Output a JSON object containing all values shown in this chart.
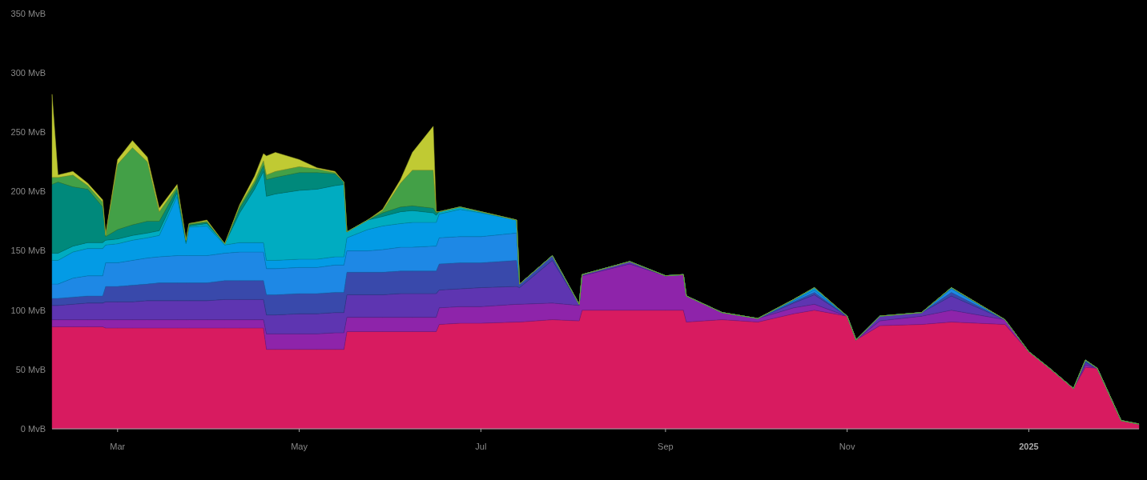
{
  "chart_data": {
    "type": "area",
    "stacked": true,
    "x": [
      "2024-02-08",
      "2024-02-10",
      "2024-02-15",
      "2024-02-20",
      "2024-02-25",
      "2024-02-26",
      "2024-03-01",
      "2024-03-06",
      "2024-03-11",
      "2024-03-15",
      "2024-03-21",
      "2024-03-24",
      "2024-03-25",
      "2024-03-31",
      "2024-04-06",
      "2024-04-11",
      "2024-04-16",
      "2024-04-19",
      "2024-04-20",
      "2024-04-23",
      "2024-05-01",
      "2024-05-07",
      "2024-05-13",
      "2024-05-16",
      "2024-05-17",
      "2024-05-24",
      "2024-05-29",
      "2024-06-04",
      "2024-06-08",
      "2024-06-15",
      "2024-06-16",
      "2024-06-17",
      "2024-06-24",
      "2024-07-01",
      "2024-07-13",
      "2024-07-14",
      "2024-07-25",
      "2024-08-03",
      "2024-08-04",
      "2024-08-20",
      "2024-09-01",
      "2024-09-07",
      "2024-09-08",
      "2024-09-20",
      "2024-10-02",
      "2024-10-14",
      "2024-10-21",
      "2024-11-01",
      "2024-11-04",
      "2024-11-12",
      "2024-11-26",
      "2024-12-06",
      "2024-12-24",
      "2025-01-01",
      "2025-01-08",
      "2025-01-16",
      "2025-01-20",
      "2025-01-24",
      "2025-02-01",
      "2025-02-07"
    ],
    "series": [
      {
        "color": "#d81b60",
        "values": [
          86,
          86,
          86,
          86,
          86,
          85,
          85,
          85,
          85,
          85,
          85,
          85,
          85,
          85,
          85,
          85,
          85,
          85,
          67,
          67,
          67,
          67,
          67,
          67,
          82,
          82,
          82,
          82,
          82,
          82,
          82,
          88,
          89,
          89,
          90,
          90,
          92,
          91,
          100,
          100,
          100,
          100,
          90,
          92,
          90,
          97,
          100,
          95,
          75,
          87,
          88,
          90,
          88,
          65,
          51,
          34,
          52,
          51,
          7,
          4
        ]
      },
      {
        "color": "#8e24aa",
        "values": [
          6,
          6,
          6,
          6,
          6,
          7,
          7,
          7,
          7,
          7,
          7,
          7,
          7,
          7,
          7,
          7,
          7,
          7,
          13,
          13,
          13,
          13,
          14,
          14,
          12,
          12,
          12,
          12,
          12,
          12,
          12,
          14,
          14,
          14,
          15,
          15,
          14,
          13,
          29,
          39,
          29,
          30,
          22,
          6,
          3,
          5,
          5,
          0,
          0,
          4,
          7,
          10,
          4,
          0,
          0,
          0,
          2,
          0,
          0,
          0
        ]
      },
      {
        "color": "#5e35b1",
        "values": [
          12,
          12,
          13,
          14,
          14,
          15,
          15,
          15,
          16,
          16,
          16,
          16,
          16,
          16,
          17,
          17,
          17,
          17,
          16,
          16,
          17,
          17,
          17,
          17,
          19,
          19,
          19,
          20,
          20,
          20,
          20,
          15,
          15,
          16,
          15,
          14,
          36,
          1,
          1,
          2,
          0,
          0,
          0,
          0,
          0,
          4,
          8,
          0,
          0,
          4,
          3,
          12,
          0,
          0,
          0,
          0,
          2,
          0,
          0,
          0
        ]
      },
      {
        "color": "#3949ab",
        "values": [
          6,
          6,
          6,
          6,
          6,
          13,
          13,
          14,
          14,
          15,
          15,
          15,
          15,
          15,
          16,
          16,
          16,
          16,
          17,
          17,
          17,
          17,
          17,
          17,
          19,
          19,
          19,
          19,
          19,
          19,
          19,
          22,
          22,
          21,
          22,
          3,
          4,
          0,
          0,
          0,
          0,
          0,
          0,
          0,
          0,
          1,
          2,
          0,
          0,
          0,
          0,
          3,
          0,
          0,
          0,
          0,
          1,
          0,
          0,
          0
        ]
      },
      {
        "color": "#1e88e5",
        "values": [
          12,
          12,
          16,
          17,
          17,
          20,
          20,
          21,
          22,
          22,
          23,
          23,
          23,
          23,
          23,
          24,
          24,
          24,
          22,
          22,
          22,
          22,
          23,
          23,
          18,
          18,
          19,
          20,
          20,
          21,
          21,
          22,
          22,
          22,
          23,
          0,
          0,
          0,
          0,
          0,
          0,
          0,
          0,
          0,
          0,
          1,
          2,
          0,
          0,
          0,
          0,
          3,
          0,
          0,
          0,
          0,
          1,
          0,
          0,
          0
        ]
      },
      {
        "color": "#039be5",
        "values": [
          20,
          20,
          22,
          23,
          23,
          15,
          16,
          17,
          17,
          18,
          50,
          10,
          24,
          25,
          7,
          8,
          8,
          8,
          7,
          7,
          7,
          7,
          7,
          7,
          11,
          18,
          20,
          20,
          21,
          20,
          20,
          20,
          23,
          20,
          11,
          0,
          0,
          0,
          0,
          0,
          0,
          0,
          0,
          0,
          0,
          1,
          2,
          0,
          0,
          0,
          0,
          1,
          0,
          0,
          0,
          0,
          0,
          0,
          0,
          0
        ]
      },
      {
        "color": "#00acc1",
        "values": [
          6,
          6,
          5,
          5,
          5,
          4,
          4,
          4,
          4,
          4,
          3,
          1,
          1,
          2,
          1,
          25,
          45,
          60,
          54,
          56,
          58,
          59,
          60,
          61,
          5,
          8,
          8,
          10,
          10,
          8,
          6,
          2,
          2,
          1,
          0,
          0,
          0,
          0,
          0,
          0,
          0,
          0,
          0,
          0,
          0,
          0,
          0,
          0,
          0,
          0,
          0,
          0,
          0,
          0,
          0,
          0,
          0,
          0,
          0,
          0
        ]
      },
      {
        "color": "#00897b",
        "values": [
          58,
          60,
          50,
          45,
          30,
          3,
          8,
          9,
          10,
          8,
          3,
          1,
          1,
          1,
          0,
          4,
          4,
          5,
          14,
          14,
          15,
          14,
          10,
          2,
          0,
          0,
          3,
          4,
          4,
          4,
          2,
          0,
          0,
          0,
          0,
          0,
          0,
          0,
          0,
          0,
          0,
          0,
          0,
          0,
          0,
          0,
          0,
          0,
          0,
          0,
          0,
          0,
          0,
          0,
          0,
          0,
          0,
          0,
          0,
          0
        ]
      },
      {
        "color": "#43a047",
        "values": [
          6,
          4,
          10,
          3,
          4,
          1,
          55,
          65,
          50,
          8,
          2,
          1,
          1,
          1,
          0,
          2,
          3,
          4,
          4,
          5,
          5,
          3,
          1,
          0,
          0,
          0,
          2,
          20,
          30,
          32,
          1,
          0,
          0,
          0,
          0,
          0,
          0,
          0,
          0,
          0,
          0,
          0,
          0,
          0,
          0,
          0,
          0,
          0,
          0,
          0,
          0,
          0,
          0,
          0,
          0,
          0,
          0,
          0,
          0,
          0
        ]
      },
      {
        "color": "#c0ca33",
        "values": [
          70,
          2,
          3,
          2,
          2,
          1,
          4,
          6,
          4,
          3,
          2,
          0,
          0,
          1,
          0,
          1,
          4,
          6,
          16,
          16,
          6,
          1,
          1,
          0,
          0,
          0,
          1,
          3,
          15,
          37,
          0,
          0,
          0,
          0,
          0,
          0,
          0,
          0,
          0,
          0,
          0,
          0,
          0,
          0,
          0,
          0,
          0,
          0,
          0,
          0,
          0,
          0,
          0,
          0,
          0,
          0,
          0,
          0,
          0,
          0
        ]
      }
    ],
    "xlim": [
      "2024-02-08",
      "2025-02-07"
    ],
    "xticks": [
      {
        "value": "2024-03-01",
        "label": "Mar"
      },
      {
        "value": "2024-05-01",
        "label": "May"
      },
      {
        "value": "2024-07-01",
        "label": "Jul"
      },
      {
        "value": "2024-09-01",
        "label": "Sep"
      },
      {
        "value": "2024-11-01",
        "label": "Nov"
      },
      {
        "value": "2025-01-01",
        "label": "2025"
      }
    ],
    "ylim": [
      0,
      350
    ],
    "yticks": [
      {
        "value": 0,
        "label": "0 MvB"
      },
      {
        "value": 50,
        "label": "50 MvB"
      },
      {
        "value": 100,
        "label": "100 MvB"
      },
      {
        "value": 150,
        "label": "150 MvB"
      },
      {
        "value": 200,
        "label": "200 MvB"
      },
      {
        "value": 250,
        "label": "250 MvB"
      },
      {
        "value": 300,
        "label": "300 MvB"
      },
      {
        "value": 350,
        "label": "350 MvB"
      }
    ]
  }
}
